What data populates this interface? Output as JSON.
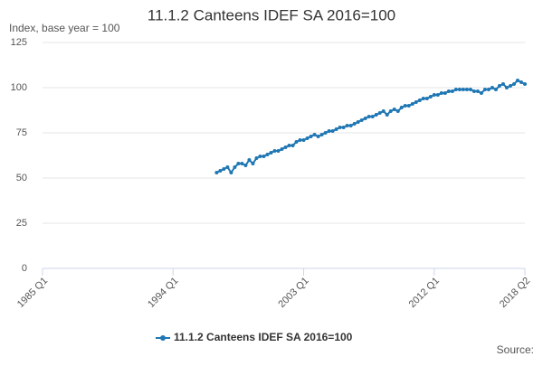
{
  "chart_data": {
    "type": "line",
    "title": "11.1.2 Canteens IDEF SA 2016=100",
    "subtitle": "Index, base year = 100",
    "source": "Source:",
    "categories": [
      "1985 Q1",
      null,
      null,
      null,
      null,
      null,
      null,
      null,
      null,
      null,
      null,
      null,
      null,
      null,
      null,
      null,
      null,
      null,
      null,
      null,
      null,
      null,
      null,
      null,
      null,
      null,
      null,
      null,
      null,
      null,
      null,
      null,
      null,
      null,
      null,
      null,
      "1994 Q1",
      null,
      null,
      null,
      null,
      null,
      null,
      null,
      null,
      null,
      null,
      null,
      null,
      null,
      null,
      null,
      null,
      null,
      null,
      null,
      null,
      null,
      null,
      null,
      null,
      null,
      null,
      null,
      null,
      null,
      null,
      null,
      null,
      null,
      null,
      null,
      "2003 Q1",
      null,
      null,
      null,
      null,
      null,
      null,
      null,
      null,
      null,
      null,
      null,
      null,
      null,
      null,
      null,
      null,
      null,
      null,
      null,
      null,
      null,
      null,
      null,
      null,
      null,
      null,
      null,
      null,
      null,
      null,
      null,
      null,
      null,
      null,
      null,
      "2012 Q1",
      null,
      null,
      null,
      null,
      null,
      null,
      null,
      null,
      null,
      null,
      null,
      null,
      null,
      null,
      null,
      null,
      null,
      null,
      null,
      null,
      null,
      null,
      null,
      null,
      "2018 Q2"
    ],
    "series": [
      {
        "name": "11.1.2 Canteens IDEF SA 2016=100",
        "color": "#1f77b4",
        "values": [
          null,
          null,
          null,
          null,
          null,
          null,
          null,
          null,
          null,
          null,
          null,
          null,
          null,
          null,
          null,
          null,
          null,
          null,
          null,
          null,
          null,
          null,
          null,
          null,
          null,
          null,
          null,
          null,
          null,
          null,
          null,
          null,
          null,
          null,
          null,
          null,
          null,
          null,
          null,
          null,
          null,
          null,
          null,
          null,
          null,
          null,
          null,
          null,
          53,
          54,
          55,
          56,
          53,
          56,
          58,
          58,
          57,
          60,
          58,
          61,
          62,
          62,
          63,
          64,
          65,
          65,
          66,
          67,
          68,
          68,
          70,
          71,
          71,
          72,
          73,
          74,
          73,
          74,
          75,
          76,
          76,
          77,
          78,
          78,
          79,
          79,
          80,
          81,
          82,
          83,
          84,
          84,
          85,
          86,
          87,
          85,
          87,
          88,
          87,
          89,
          90,
          90,
          91,
          92,
          93,
          94,
          94,
          95,
          96,
          96,
          97,
          97,
          98,
          98,
          99,
          99,
          99,
          99,
          99,
          98,
          98,
          97,
          99,
          99,
          100,
          99,
          101,
          102,
          100,
          101,
          102,
          104,
          103,
          102
        ]
      }
    ],
    "ylim": [
      0,
      125
    ],
    "yticks": [
      0,
      25,
      50,
      75,
      100,
      125
    ],
    "grid": true
  }
}
